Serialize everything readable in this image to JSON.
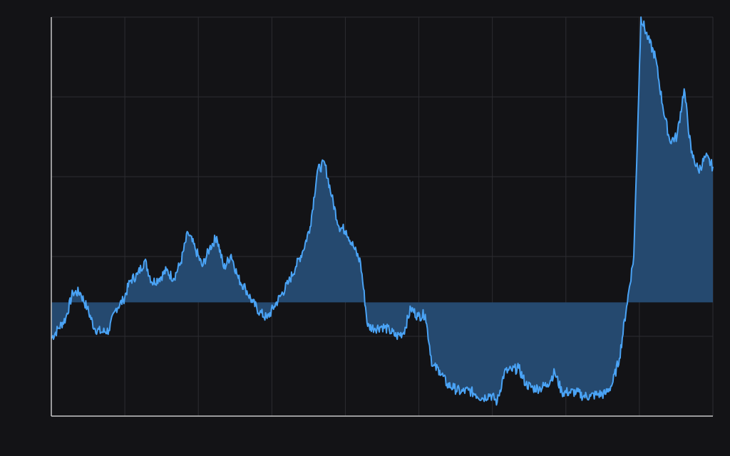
{
  "chart_data": {
    "type": "area",
    "title": "",
    "xlabel": "",
    "ylabel": "",
    "xlim": [
      0,
      900
    ],
    "ylim": [
      0,
      100
    ],
    "baseline": 28.5,
    "grid": true,
    "colors": {
      "background": "#131316",
      "line": "#4aa3f5",
      "fill": "#25496f",
      "grid": "#2c2c31",
      "axis": "#c8c8c8"
    },
    "series": [
      {
        "values": [
          19.5,
          22,
          24.5,
          31,
          31,
          27,
          22,
          21,
          21.5,
          27,
          29,
          34,
          35.5,
          39,
          33.5,
          34.5,
          36.5,
          34.5,
          38.5,
          46,
          42,
          37.5,
          42,
          45,
          37,
          40.5,
          34.5,
          32,
          28.5,
          26,
          24.5,
          27.5,
          30.5,
          33.5,
          37.5,
          41.5,
          47.5,
          61.5,
          63.5,
          55,
          47.5,
          46.5,
          42.5,
          38.5,
          22.5,
          22,
          22.5,
          21.5,
          20,
          21,
          27,
          25,
          25.5,
          12.5,
          11.5,
          8,
          7,
          6,
          6.5,
          5.5,
          4.5,
          5.5,
          3.5,
          11,
          11.5,
          12,
          8,
          7,
          7,
          8,
          11,
          6,
          6,
          6,
          5,
          5,
          5.5,
          5.5,
          8,
          14.5,
          27.5,
          40,
          100,
          94.5,
          90,
          78,
          69,
          70,
          82,
          66,
          61.5,
          65,
          62.5
        ]
      }
    ]
  }
}
